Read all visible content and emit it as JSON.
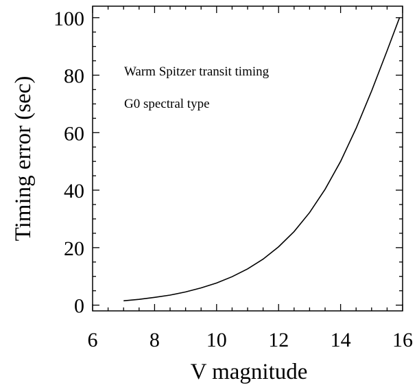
{
  "chart_data": {
    "type": "line",
    "title": "",
    "xlabel": "V magnitude",
    "ylabel": "Timing error (sec)",
    "xlim": [
      6,
      16
    ],
    "ylim": [
      -2,
      104
    ],
    "x_ticks": [
      6,
      8,
      10,
      12,
      14,
      16
    ],
    "y_ticks": [
      0,
      20,
      40,
      60,
      80,
      100
    ],
    "grid": false,
    "annotations": [
      "Warm Spitzer transit timing",
      "G0 spectral type"
    ],
    "series": [
      {
        "color": "#000000",
        "x": [
          7.0,
          7.5,
          8.0,
          8.5,
          9.0,
          9.5,
          10.0,
          10.5,
          11.0,
          11.5,
          12.0,
          12.5,
          13.0,
          13.5,
          14.0,
          14.5,
          15.0,
          15.5,
          15.9
        ],
        "y": [
          1.5,
          2.0,
          2.7,
          3.5,
          4.6,
          6.0,
          7.7,
          9.9,
          12.6,
          16.0,
          20.3,
          25.6,
          32.2,
          40.3,
          50.0,
          61.5,
          74.5,
          88.5,
          100.0
        ]
      }
    ]
  }
}
